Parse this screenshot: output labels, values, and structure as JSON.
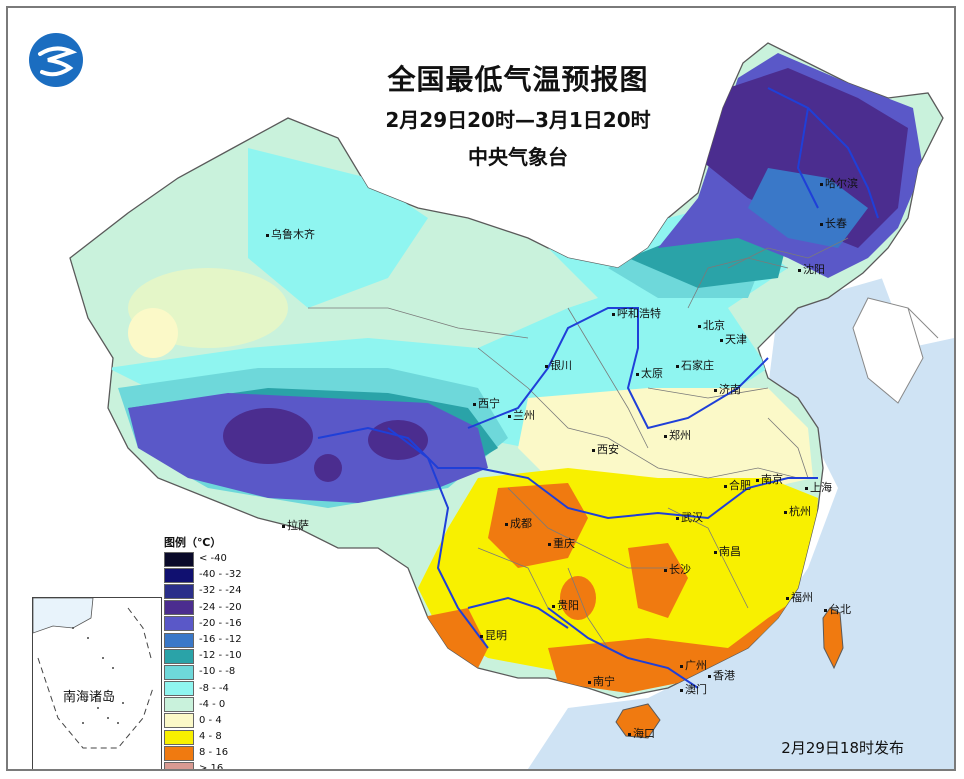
{
  "header": {
    "title": "全国最低气温预报图",
    "subtitle": "2月29日20时—3月1日20时",
    "organization": "中央气象台"
  },
  "legend": {
    "title": "图例（℃）",
    "items": [
      {
        "label": "< -40",
        "color": "#0a0a2a"
      },
      {
        "label": "-40 - -32",
        "color": "#101070"
      },
      {
        "label": "-32 - -24",
        "color": "#2a2e8a"
      },
      {
        "label": "-24 - -20",
        "color": "#4b2d8f"
      },
      {
        "label": "-20 - -16",
        "color": "#5a58c8"
      },
      {
        "label": "-16 - -12",
        "color": "#3a78c8"
      },
      {
        "label": "-12 - -10",
        "color": "#2aa3a8"
      },
      {
        "label": "-10 - -8",
        "color": "#6ed8da"
      },
      {
        "label": "-8 - -4",
        "color": "#8ff5f0"
      },
      {
        "label": "-4 - 0",
        "color": "#c9f2dc"
      },
      {
        "label": "0 - 4",
        "color": "#fbf9c8"
      },
      {
        "label": "4 - 8",
        "color": "#f8f000"
      },
      {
        "label": "8 - 16",
        "color": "#f07a10"
      },
      {
        "label": "> 16",
        "color": "#d89a92"
      }
    ]
  },
  "cities": [
    {
      "name": "乌鲁木齐"
    },
    {
      "name": "哈尔滨"
    },
    {
      "name": "长春"
    },
    {
      "name": "沈阳"
    },
    {
      "name": "呼和浩特"
    },
    {
      "name": "北京"
    },
    {
      "name": "天津"
    },
    {
      "name": "银川"
    },
    {
      "name": "太原"
    },
    {
      "name": "石家庄"
    },
    {
      "name": "济南"
    },
    {
      "name": "西宁"
    },
    {
      "name": "兰州"
    },
    {
      "name": "郑州"
    },
    {
      "name": "西安"
    },
    {
      "name": "南京"
    },
    {
      "name": "合肥"
    },
    {
      "name": "上海"
    },
    {
      "name": "杭州"
    },
    {
      "name": "武汉"
    },
    {
      "name": "成都"
    },
    {
      "name": "重庆"
    },
    {
      "name": "拉萨"
    },
    {
      "name": "南昌"
    },
    {
      "name": "长沙"
    },
    {
      "name": "贵阳"
    },
    {
      "name": "福州"
    },
    {
      "name": "台北"
    },
    {
      "name": "昆明"
    },
    {
      "name": "南宁"
    },
    {
      "name": "广州"
    },
    {
      "name": "香港"
    },
    {
      "name": "澳门"
    },
    {
      "name": "海口"
    }
  ],
  "inset": {
    "label": "南海诸岛"
  },
  "release": "2月29日18时发布",
  "colors": {
    "sea": "#cfe3f4",
    "river": "#1f3fd8",
    "border": "#777777",
    "frame": "#7a7a7a"
  }
}
